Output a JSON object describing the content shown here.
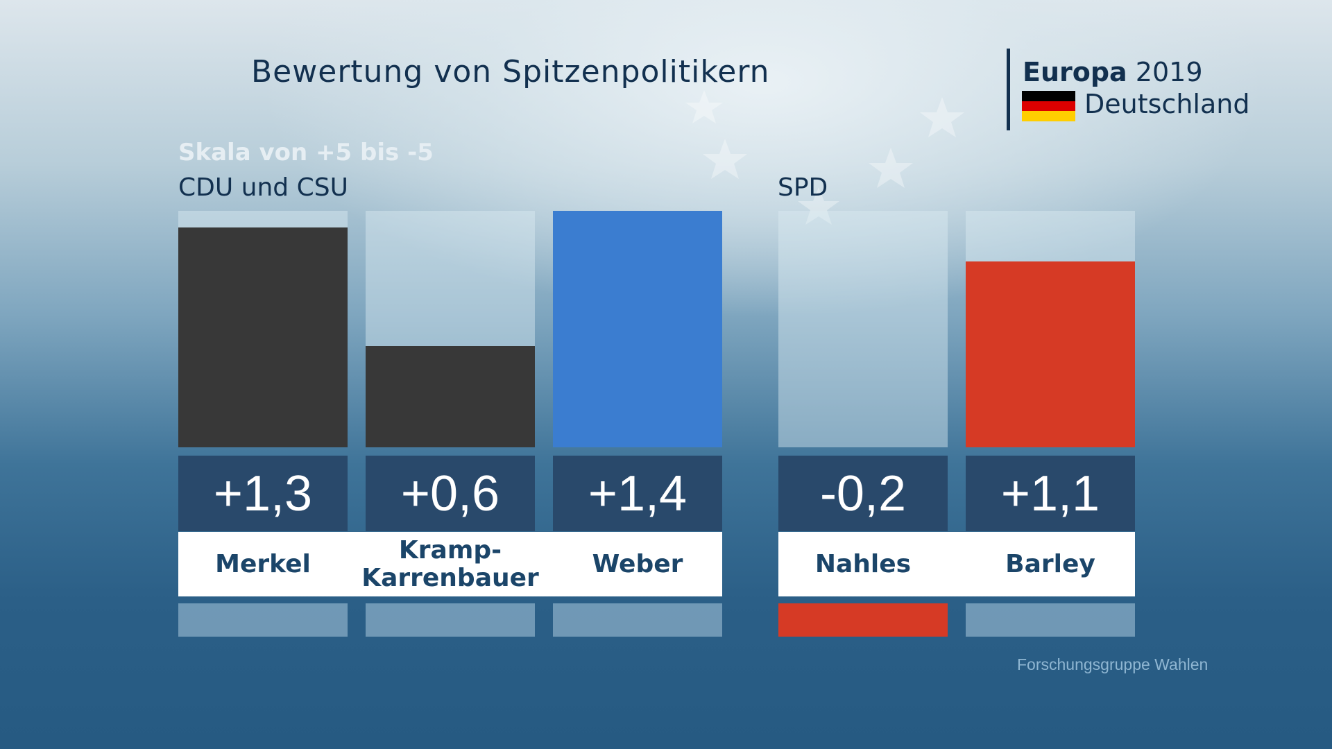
{
  "header": {
    "title": "Bewertung von Spitzenpolitikern",
    "logo_europa": "Europa",
    "logo_year": "2019",
    "logo_country": "Deutschland",
    "flag_colors": [
      "#000000",
      "#dd0000",
      "#ffce00"
    ]
  },
  "footer": {
    "source": "Forschungsgruppe Wahlen"
  },
  "chart_data": {
    "type": "bar",
    "title": "Bewertung von Spitzenpolitikern",
    "subtitle": "Skala von +5 bis -5",
    "ylim": [
      -5,
      5
    ],
    "groups": [
      {
        "label": "CDU und CSU",
        "items": [
          {
            "name": "Merkel",
            "value": 1.3,
            "value_label": "+1,3",
            "color": "#383838"
          },
          {
            "name": "Kramp-\nKarrenbauer",
            "value": 0.6,
            "value_label": "+0,6",
            "color": "#383838"
          },
          {
            "name": "Weber",
            "value": 1.4,
            "value_label": "+1,4",
            "color": "#3b7dd0"
          }
        ]
      },
      {
        "label": "SPD",
        "items": [
          {
            "name": "Nahles",
            "value": -0.2,
            "value_label": "-0,2",
            "color": "#d63a25"
          },
          {
            "name": "Barley",
            "value": 1.1,
            "value_label": "+1,1",
            "color": "#d63a25"
          }
        ]
      }
    ]
  }
}
